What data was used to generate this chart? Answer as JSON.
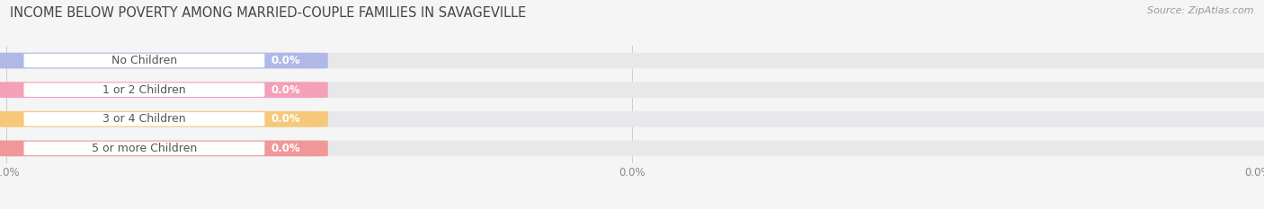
{
  "title": "INCOME BELOW POVERTY AMONG MARRIED-COUPLE FAMILIES IN SAVAGEVILLE",
  "source": "Source: ZipAtlas.com",
  "categories": [
    "No Children",
    "1 or 2 Children",
    "3 or 4 Children",
    "5 or more Children"
  ],
  "values": [
    0.0,
    0.0,
    0.0,
    0.0
  ],
  "bar_colors": [
    "#b0b8e8",
    "#f4a0b8",
    "#f5c87a",
    "#f09898"
  ],
  "background_color": "#f5f5f5",
  "bar_bg_color": "#e8e8eb",
  "figsize": [
    14.06,
    2.33
  ],
  "dpi": 100,
  "title_fontsize": 10.5,
  "source_fontsize": 8,
  "label_fontsize": 9,
  "value_fontsize": 8.5
}
